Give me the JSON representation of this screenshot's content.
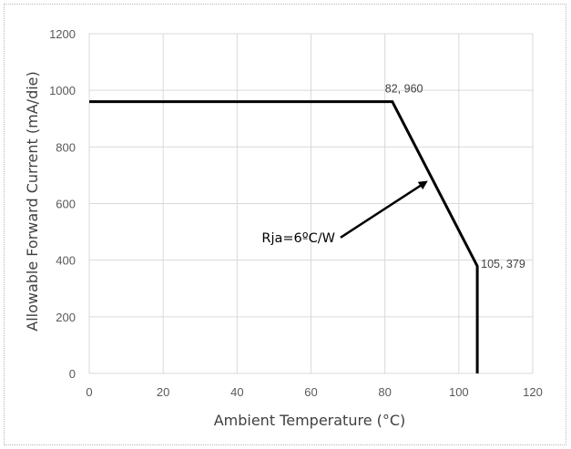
{
  "chart_data": {
    "type": "line",
    "xlabel": "Ambient Temperature (°C)",
    "ylabel": "Allowable Forward Current (mA/die)",
    "xlim": [
      0,
      120
    ],
    "ylim": [
      0,
      1200
    ],
    "x_ticks": [
      0,
      20,
      40,
      60,
      80,
      100,
      120
    ],
    "y_ticks": [
      0,
      200,
      400,
      600,
      800,
      1000,
      1200
    ],
    "grid": true,
    "legend": "none",
    "series": [
      {
        "x": [
          0,
          82,
          105,
          105
        ],
        "y": [
          960,
          960,
          379,
          0
        ],
        "color": "#000000"
      }
    ],
    "data_labels": [
      {
        "x": 82,
        "y": 960,
        "text": "82, 960"
      },
      {
        "x": 105,
        "y": 379,
        "text": "105, 379"
      }
    ],
    "annotations": [
      {
        "text": "Rja=6ºC/W",
        "arrow_from": [
          68,
          480
        ],
        "arrow_to": [
          91,
          675
        ]
      }
    ]
  }
}
